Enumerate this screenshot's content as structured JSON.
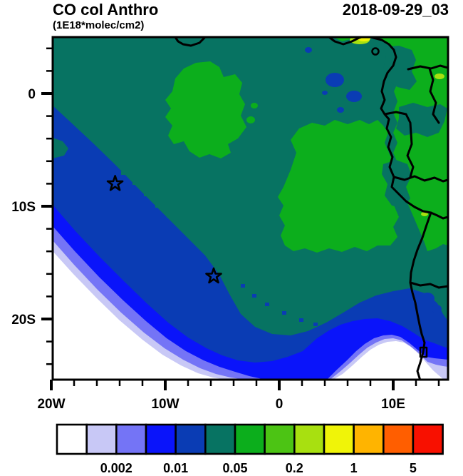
{
  "header": {
    "title": "CO col Anthro",
    "subtitle": "(1E18*molec/cm2)",
    "timestamp": "2018-09-29_03"
  },
  "axes": {
    "y_ticks": [
      {
        "label": "0",
        "lat": 0
      },
      {
        "label": "10S",
        "lat": -10
      },
      {
        "label": "20S",
        "lat": -20
      }
    ],
    "x_ticks": [
      {
        "label": "20W",
        "lon": -20
      },
      {
        "label": "10W",
        "lon": -10
      },
      {
        "label": "0",
        "lon": 0
      },
      {
        "label": "10E",
        "lon": 10
      }
    ],
    "minor_tick_interval_deg": 2
  },
  "colorbar": {
    "labels": [
      "0.002",
      "0.01",
      "0.05",
      "0.2",
      "1",
      "5"
    ],
    "label_boundary_indices": [
      2,
      4,
      6,
      8,
      10,
      12
    ]
  },
  "chart_data": {
    "type": "heatmap",
    "variant": "filled-contour-geographic-map",
    "title": "CO col Anthro",
    "units": "1E18*molec/cm2",
    "timestamp": "2018-09-29_03",
    "extent": {
      "lon_min": -19.9,
      "lon_max": 14.8,
      "lat_min": -25.4,
      "lat_max": 5.0
    },
    "levels": [
      0.001,
      0.002,
      0.005,
      0.01,
      0.02,
      0.05,
      0.1,
      0.2,
      0.5,
      1,
      2,
      5
    ],
    "labeled_levels": [
      0.002,
      0.01,
      0.05,
      0.2,
      1,
      5
    ],
    "palette": [
      "#ffffff",
      "#c8c8f6",
      "#7474f6",
      "#0a14fa",
      "#0a3cb4",
      "#077362",
      "#0cae1c",
      "#4cc414",
      "#a8e010",
      "#f0f408",
      "#ffb400",
      "#ff5e00",
      "#f81000"
    ],
    "palette_names": [
      "white",
      "lavender",
      "periwinkle",
      "blue",
      "cobalt",
      "teal",
      "green",
      "light-green",
      "yellow-green",
      "yellow",
      "orange",
      "dark-orange",
      "red"
    ],
    "markers": [
      {
        "shape": "open-star",
        "lon": -14.4,
        "lat": -8.0
      },
      {
        "shape": "open-star",
        "lon": -5.75,
        "lat": -16.2
      }
    ],
    "regions_summary": [
      {
        "band": "0.02-0.05 (teal)",
        "where": "most of the ocean and central map background"
      },
      {
        "band": "0.01-0.02 (cobalt)",
        "where": "broad SW-NE plume band across the South Atlantic"
      },
      {
        "band": "< 0.01 (blue/periwinkle/lavender/white)",
        "where": "south-western corner and southern edge"
      },
      {
        "band": "0.05-0.1 (green)",
        "where": "patches over central Atlantic and African land in the east"
      },
      {
        "band": "0.2-1 (yellow-green/yellow)",
        "where": "small spots along the Gulf of Guinea coast"
      }
    ],
    "grid": false,
    "legend_position": "bottom-horizontal-colorbar"
  }
}
